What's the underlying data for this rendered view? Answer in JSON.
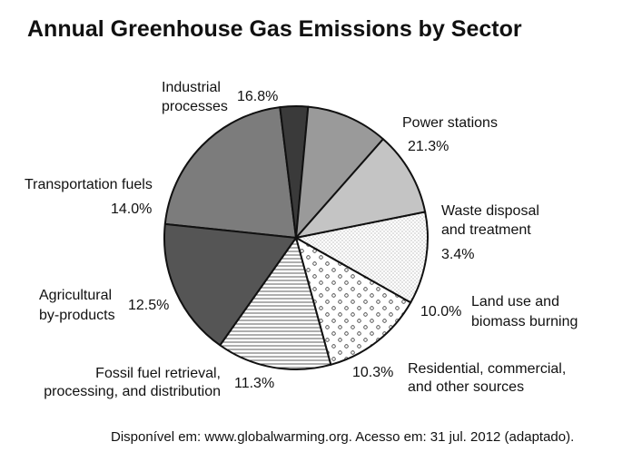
{
  "source_note": "Disponível em: www.globalwarming.org. Acesso em: 31 jul. 2012 (adaptado).",
  "chart_data": {
    "type": "pie",
    "title": "Annual Greenhouse Gas Emissions by Sector",
    "slices": [
      {
        "label": "Power stations",
        "value": 21.3,
        "pct": "21.3%",
        "fill": "#7c7c7c"
      },
      {
        "label": "Waste disposal and treatment",
        "value": 3.4,
        "pct": "3.4%",
        "fill": "#3a3a3a"
      },
      {
        "label": "Land use and biomass burning",
        "value": 10.0,
        "pct": "10.0%",
        "fill": "#9a9a9a"
      },
      {
        "label": "Residential, commercial, and other sources",
        "value": 10.3,
        "pct": "10.3%",
        "fill": "#c4c4c4"
      },
      {
        "label": "Fossil fuel retrieval, processing, and distribution",
        "value": 11.3,
        "pct": "11.3%",
        "fill": "pattern-stipple"
      },
      {
        "label": "Agricultural by-products",
        "value": 12.5,
        "pct": "12.5%",
        "fill": "pattern-circles"
      },
      {
        "label": "Transportation fuels",
        "value": 14.0,
        "pct": "14.0%",
        "fill": "pattern-hlines"
      },
      {
        "label": "Industrial processes",
        "value": 16.8,
        "pct": "16.8%",
        "fill": "#555555"
      }
    ]
  }
}
